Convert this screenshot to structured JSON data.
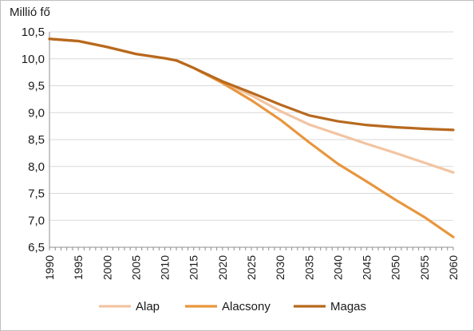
{
  "chart_data": {
    "type": "line",
    "title": "",
    "ylabel": "Millió fő",
    "xlabel": "",
    "xlim": [
      1990,
      2060
    ],
    "ylim": [
      6.5,
      10.5
    ],
    "ytick_labels": [
      "6,5",
      "7,0",
      "7,5",
      "8,0",
      "8,5",
      "9,0",
      "9,5",
      "10,0",
      "10,5"
    ],
    "xtick_labels": [
      "1990",
      "1995",
      "2000",
      "2005",
      "2010",
      "2015",
      "2020",
      "2025",
      "2030",
      "2035",
      "2040",
      "2045",
      "2050",
      "2055",
      "2060"
    ],
    "grid": "horizontal",
    "legend": "bottom",
    "series": [
      {
        "name": "Alap",
        "color": "#f2c4a2",
        "x": [
          1990,
          1995,
          2000,
          2005,
          2010,
          2012,
          2015,
          2020,
          2025,
          2030,
          2035,
          2040,
          2045,
          2050,
          2055,
          2060
        ],
        "y": [
          10.37,
          10.33,
          10.22,
          10.09,
          10.01,
          9.97,
          9.83,
          9.57,
          9.32,
          9.03,
          8.78,
          8.6,
          8.42,
          8.25,
          8.07,
          7.89
        ]
      },
      {
        "name": "Alacsony",
        "color": "#e8963e",
        "x": [
          1990,
          1995,
          2000,
          2005,
          2010,
          2012,
          2015,
          2020,
          2025,
          2030,
          2035,
          2040,
          2045,
          2050,
          2055,
          2060
        ],
        "y": [
          10.37,
          10.33,
          10.22,
          10.09,
          10.01,
          9.97,
          9.83,
          9.55,
          9.23,
          8.87,
          8.45,
          8.05,
          7.72,
          7.38,
          7.06,
          6.69
        ]
      },
      {
        "name": "Magas",
        "color": "#b7691e",
        "x": [
          1990,
          1995,
          2000,
          2005,
          2010,
          2012,
          2015,
          2020,
          2025,
          2030,
          2035,
          2040,
          2045,
          2050,
          2055,
          2060
        ],
        "y": [
          10.37,
          10.33,
          10.22,
          10.09,
          10.01,
          9.97,
          9.83,
          9.58,
          9.37,
          9.15,
          8.95,
          8.84,
          8.77,
          8.73,
          8.7,
          8.68
        ]
      }
    ]
  }
}
